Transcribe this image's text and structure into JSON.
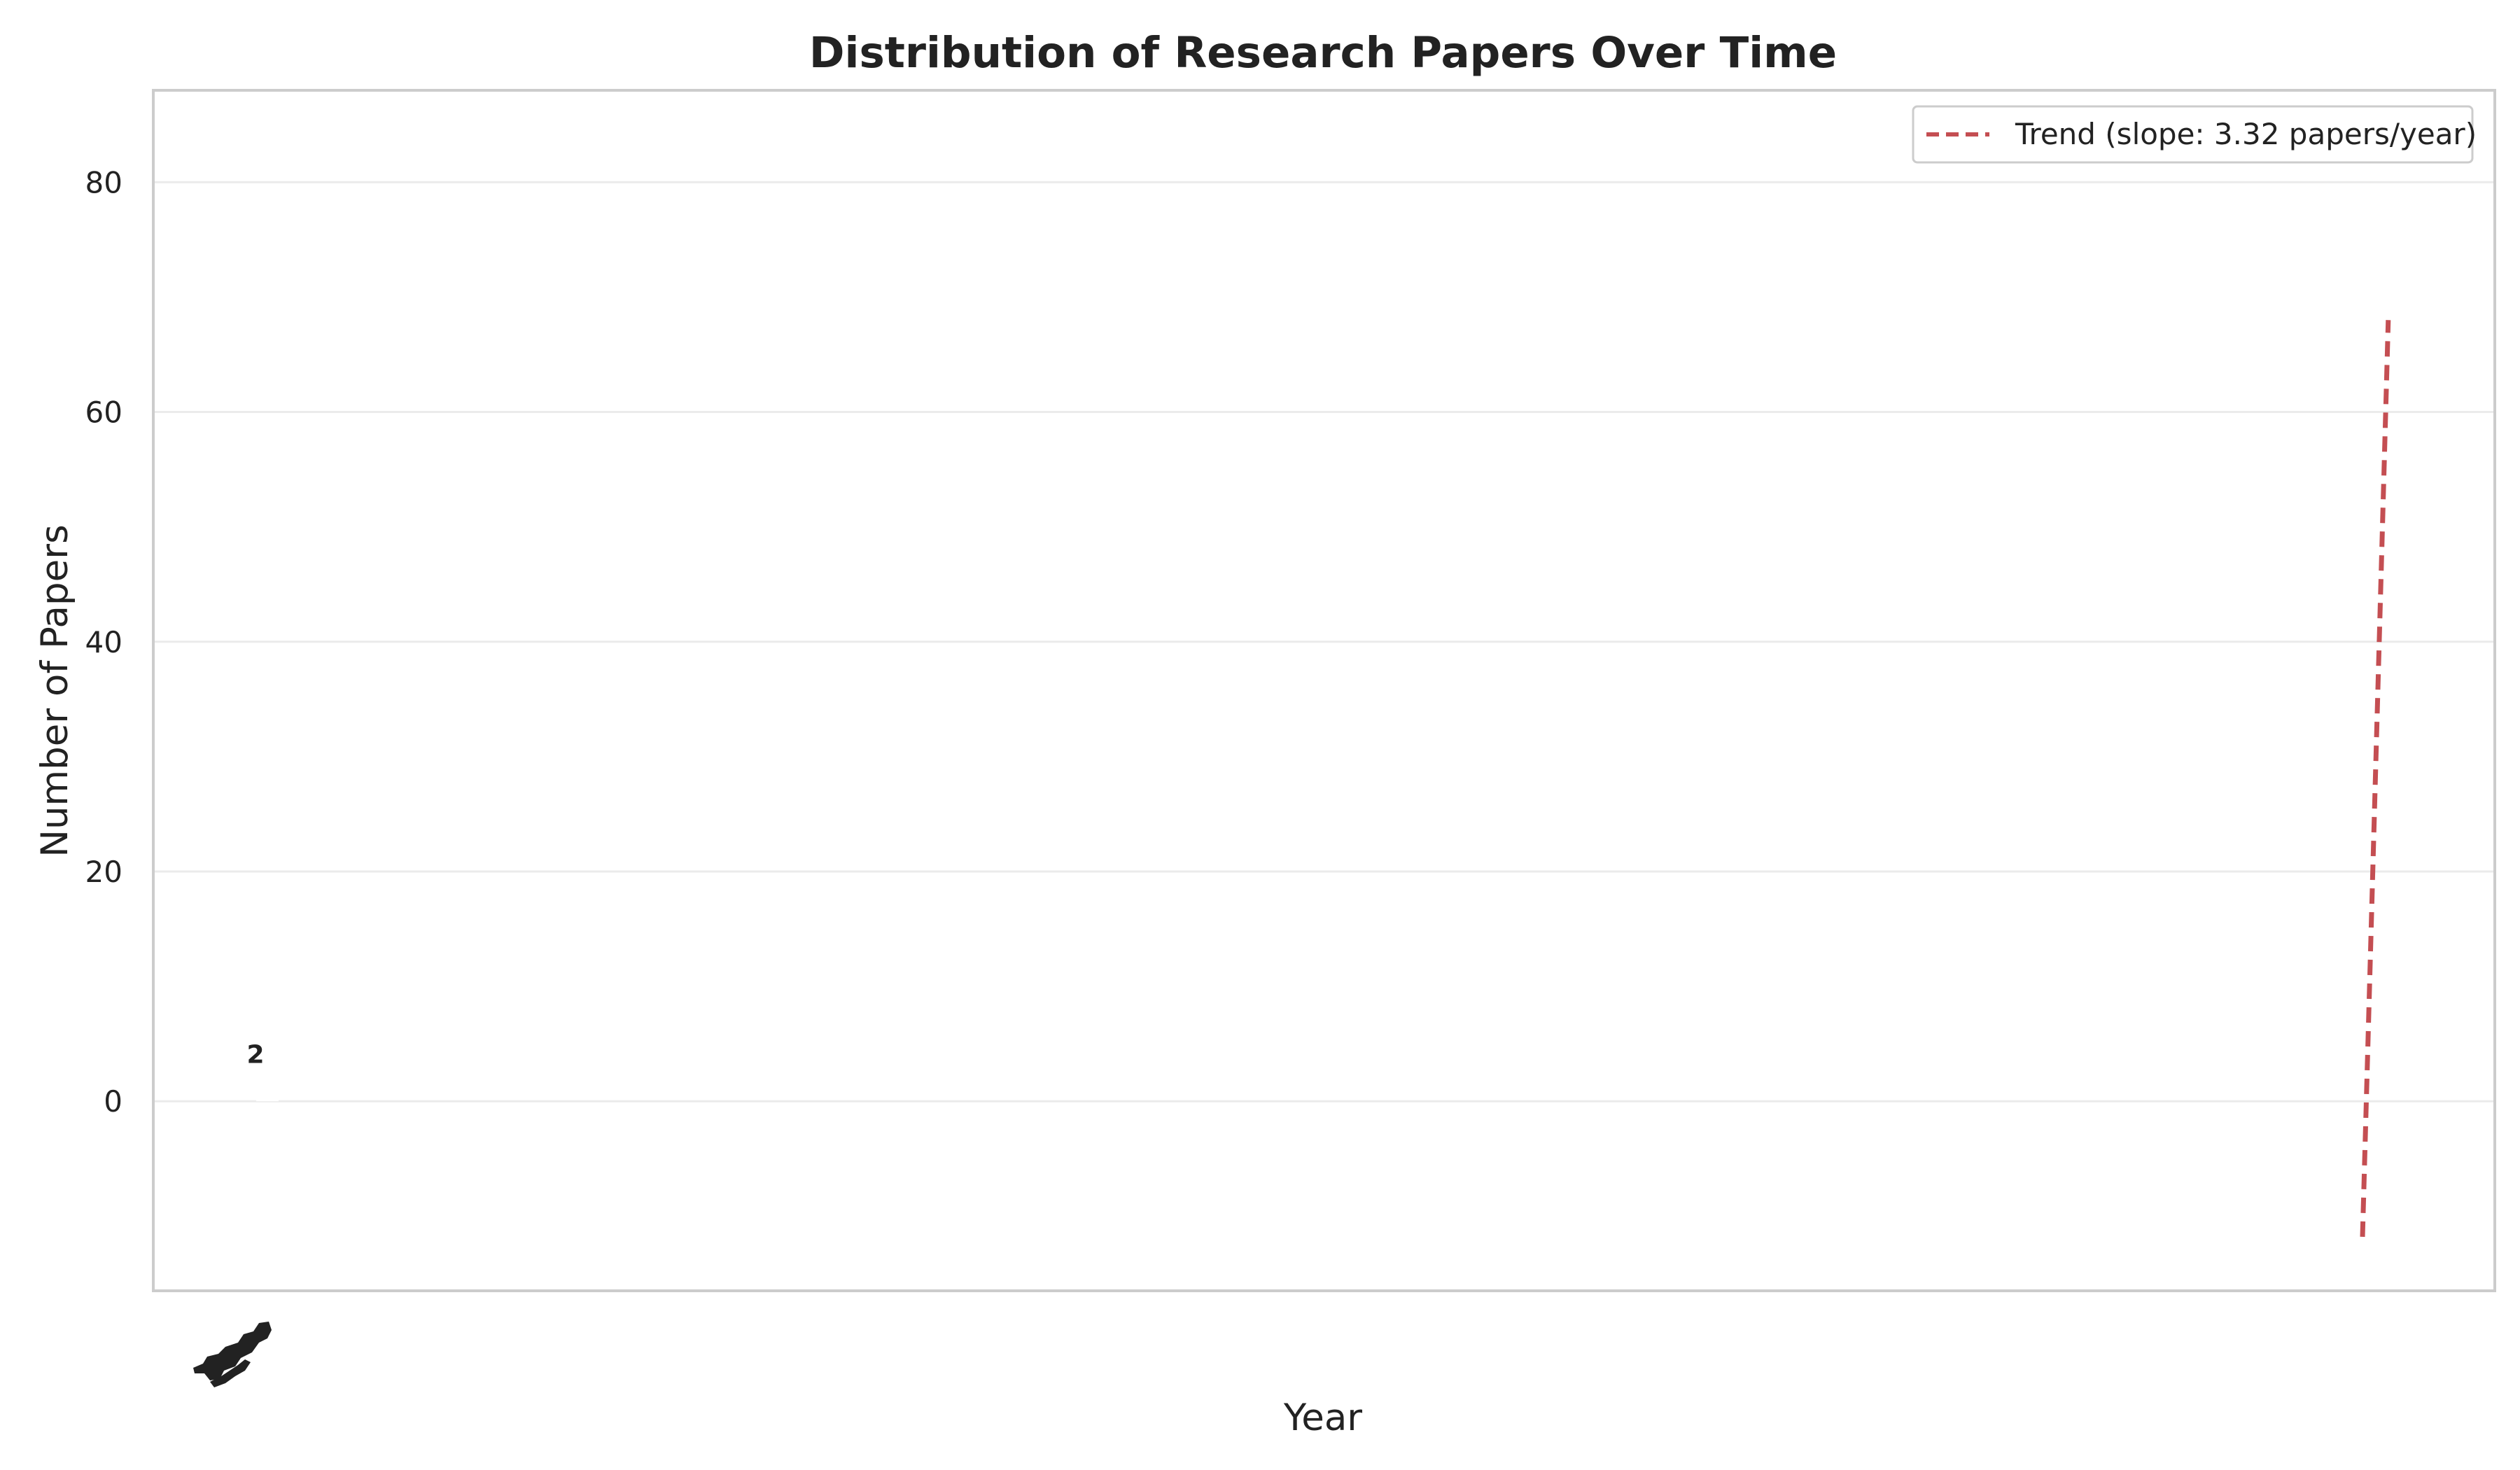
{
  "chart_data": {
    "type": "bar",
    "title": "Distribution of Research Papers Over Time",
    "xlabel": "Year",
    "ylabel": "Number of Papers",
    "ylim": [
      -16.5,
      88
    ],
    "yticks": [
      0,
      20,
      40,
      60,
      80
    ],
    "grid": true,
    "legend_position": "top-right",
    "series": [
      {
        "values": [
          2
        ],
        "color": "#ffffff"
      }
    ],
    "bar_value_labels": [
      "2"
    ],
    "trend": {
      "name": "Trend (slope: 3.32 papers/year)",
      "color": "#c44e52",
      "style": "dashed",
      "start": {
        "x_frac": 0.9435,
        "y": -11.8
      },
      "end": {
        "x_frac": 0.9545,
        "y": 68
      }
    },
    "crowded_tick_labels": "illegible overlapping year labels at the far left of the x-axis"
  },
  "colors": {
    "frame": "#cccccc",
    "grid": "#ebebeb",
    "text": "#222222",
    "trend": "#c44e52"
  }
}
